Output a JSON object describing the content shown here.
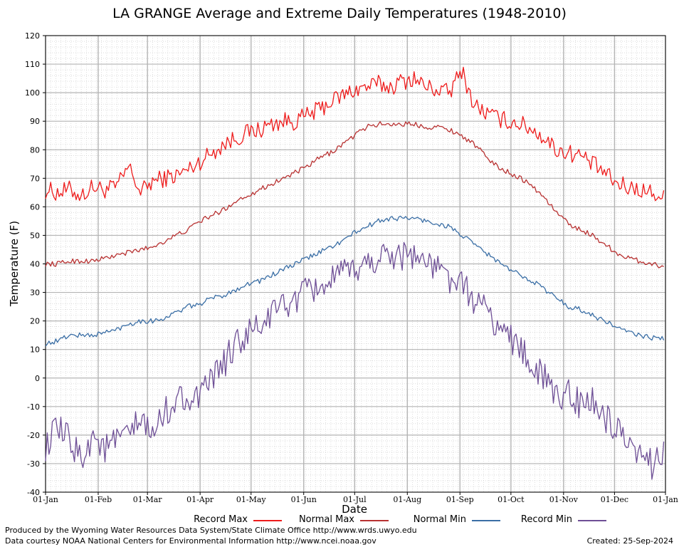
{
  "colors": {
    "record_max": "#ee1c1c",
    "normal_max": "#b83232",
    "normal_min": "#3a6ea5",
    "record_min": "#6e4f96",
    "grid_major": "#b4b4b4",
    "grid_minor": "#c8c8c8"
  },
  "footer": {
    "produced_by": "Produced by the Wyoming Water Resources Data System/State Climate Office http://www.wrds.uwyo.edu",
    "data_courtesy": "Data courtesy NOAA National Centers for Environmental Information http://www.ncei.noaa.gov",
    "created": "Created:  25-Sep-2024"
  },
  "chart_data": {
    "type": "line",
    "title": "LA GRANGE Average and Extreme Daily Temperatures (1948-2010)",
    "xlabel": "Date",
    "ylabel": "Temperature (F)",
    "ylim": [
      -40,
      120
    ],
    "yticks": [
      -40,
      -30,
      -20,
      -10,
      0,
      10,
      20,
      30,
      40,
      50,
      60,
      70,
      80,
      90,
      100,
      110,
      120
    ],
    "xlim_day": [
      1,
      366
    ],
    "xticks": [
      {
        "label": "01-Jan",
        "day": 1
      },
      {
        "label": "01-Feb",
        "day": 32
      },
      {
        "label": "01-Mar",
        "day": 61
      },
      {
        "label": "01-Apr",
        "day": 92
      },
      {
        "label": "01-May",
        "day": 122
      },
      {
        "label": "01-Jun",
        "day": 153
      },
      {
        "label": "01-Jul",
        "day": 183
      },
      {
        "label": "01-Aug",
        "day": 214
      },
      {
        "label": "01-Sep",
        "day": 245
      },
      {
        "label": "01-Oct",
        "day": 275
      },
      {
        "label": "01-Nov",
        "day": 306
      },
      {
        "label": "01-Dec",
        "day": 336
      },
      {
        "label": "01-Jan",
        "day": 366
      }
    ],
    "grid": true,
    "legend_position": "bottom",
    "series": [
      {
        "name": "Record Max",
        "color_key": "record_max",
        "day": [
          1,
          8,
          15,
          22,
          29,
          36,
          43,
          50,
          57,
          64,
          71,
          78,
          85,
          92,
          99,
          106,
          113,
          120,
          127,
          134,
          141,
          148,
          155,
          162,
          169,
          176,
          183,
          190,
          197,
          204,
          211,
          218,
          225,
          232,
          239,
          246,
          253,
          260,
          267,
          274,
          281,
          288,
          295,
          302,
          309,
          316,
          323,
          330,
          337,
          344,
          351,
          358,
          365
        ],
        "values": [
          66,
          65,
          66,
          64,
          67,
          66,
          67,
          74,
          65,
          69,
          70,
          71,
          73,
          76,
          79,
          82,
          84,
          86,
          87,
          89,
          90,
          90,
          92,
          94,
          97,
          99,
          101,
          102,
          103,
          102,
          104,
          105,
          102,
          101,
          100,
          108,
          96,
          93,
          91,
          90,
          89,
          87,
          84,
          80,
          79,
          78,
          75,
          72,
          68,
          67,
          66,
          65,
          63
        ]
      },
      {
        "name": "Normal Max",
        "color_key": "normal_max",
        "day": [
          1,
          8,
          15,
          22,
          29,
          36,
          43,
          50,
          57,
          64,
          71,
          78,
          85,
          92,
          99,
          106,
          113,
          120,
          127,
          134,
          141,
          148,
          155,
          162,
          169,
          176,
          183,
          190,
          197,
          204,
          211,
          218,
          225,
          232,
          239,
          246,
          253,
          260,
          267,
          274,
          281,
          288,
          295,
          302,
          309,
          316,
          323,
          330,
          337,
          344,
          351,
          358,
          365
        ],
        "values": [
          40,
          40,
          41,
          41,
          41,
          42,
          43,
          44,
          45,
          46,
          48,
          50,
          52,
          55,
          57,
          59,
          62,
          64,
          66,
          68,
          70,
          72,
          74,
          77,
          79,
          82,
          85,
          88,
          89,
          89,
          89,
          89,
          88,
          88,
          87,
          85,
          82,
          78,
          74,
          72,
          70,
          67,
          63,
          58,
          54,
          52,
          50,
          47,
          44,
          42,
          41,
          40,
          39
        ]
      },
      {
        "name": "Normal Min",
        "color_key": "normal_min",
        "day": [
          1,
          8,
          15,
          22,
          29,
          36,
          43,
          50,
          57,
          64,
          71,
          78,
          85,
          92,
          99,
          106,
          113,
          120,
          127,
          134,
          141,
          148,
          155,
          162,
          169,
          176,
          183,
          190,
          197,
          204,
          211,
          218,
          225,
          232,
          239,
          246,
          253,
          260,
          267,
          274,
          281,
          288,
          295,
          302,
          309,
          316,
          323,
          330,
          337,
          344,
          351,
          358,
          365
        ],
        "values": [
          12,
          13,
          15,
          15,
          15,
          16,
          17,
          19,
          20,
          20,
          21,
          23,
          25,
          26,
          28,
          29,
          31,
          33,
          34,
          36,
          38,
          40,
          42,
          44,
          46,
          48,
          51,
          53,
          55,
          56,
          56,
          56,
          55,
          54,
          53,
          50,
          47,
          44,
          41,
          38,
          36,
          34,
          31,
          28,
          25,
          24,
          22,
          20,
          18,
          16,
          15,
          14,
          14
        ]
      },
      {
        "name": "Record Min",
        "color_key": "record_min",
        "day": [
          1,
          8,
          15,
          22,
          29,
          36,
          43,
          50,
          57,
          64,
          71,
          78,
          85,
          92,
          99,
          106,
          113,
          120,
          127,
          134,
          141,
          148,
          155,
          162,
          169,
          176,
          183,
          190,
          197,
          204,
          211,
          218,
          225,
          232,
          239,
          246,
          253,
          260,
          267,
          274,
          281,
          288,
          295,
          302,
          309,
          316,
          323,
          330,
          337,
          344,
          351,
          358,
          365
        ],
        "values": [
          -24,
          -18,
          -22,
          -28,
          -20,
          -25,
          -22,
          -20,
          -15,
          -20,
          -12,
          -8,
          -6,
          -8,
          0,
          5,
          12,
          15,
          18,
          22,
          26,
          27,
          30,
          32,
          34,
          36,
          38,
          40,
          42,
          44,
          43,
          44,
          40,
          38,
          35,
          32,
          28,
          24,
          18,
          15,
          10,
          4,
          0,
          -8,
          -4,
          -10,
          -8,
          -14,
          -18,
          -26,
          -28,
          -30,
          -24
        ]
      }
    ]
  }
}
